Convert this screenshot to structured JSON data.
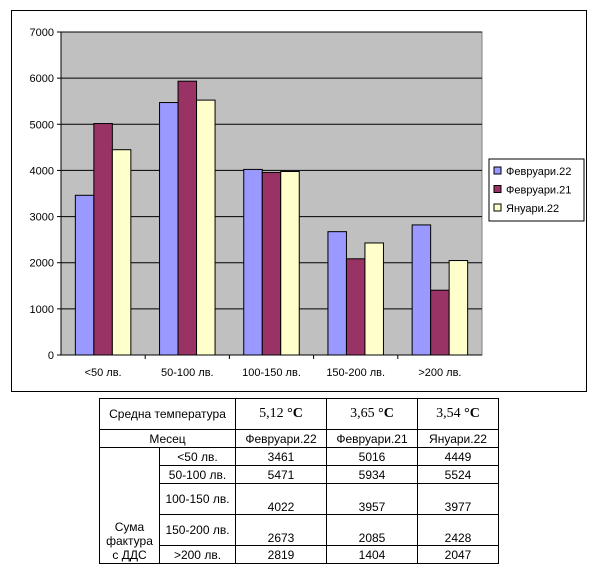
{
  "chart_data": {
    "type": "bar",
    "categories": [
      "<50 лв.",
      "50-100 лв.",
      "100-150 лв.",
      "150-200 лв.",
      ">200 лв."
    ],
    "series": [
      {
        "name": "Февруари.22",
        "color": "#9999ff",
        "values": [
          3461,
          5471,
          4022,
          2673,
          2819
        ]
      },
      {
        "name": "Февруари.21",
        "color": "#993366",
        "values": [
          5016,
          5934,
          3957,
          2085,
          1404
        ]
      },
      {
        "name": "Януари.22",
        "color": "#ffffcc",
        "values": [
          4449,
          5524,
          3977,
          2428,
          2047
        ]
      }
    ],
    "yticks": [
      "0",
      "1000",
      "2000",
      "3000",
      "4000",
      "5000",
      "6000",
      "7000"
    ],
    "ylim": [
      0,
      7000
    ],
    "plot_background": "#c0c0c0",
    "grid": true,
    "legend_position": "right"
  },
  "table": {
    "header_temp_label": "Средна температура",
    "temps": [
      {
        "value": "5,12 ",
        "unit": "°C"
      },
      {
        "value": "3,65 ",
        "unit": "°C"
      },
      {
        "value": "3,54 ",
        "unit": "°C"
      }
    ],
    "month_label": "Месец",
    "months": [
      "Февруари.22",
      "Февруари.21",
      "Януари.22"
    ],
    "group_label": "Сума фактура с ДДС",
    "rows": [
      {
        "label": "<50 лв.",
        "values": [
          "3461",
          "5016",
          "4449"
        ]
      },
      {
        "label": "50-100 лв.",
        "values": [
          "5471",
          "5934",
          "5524"
        ]
      },
      {
        "label": "100-150 лв.",
        "values": [
          "4022",
          "3957",
          "3977"
        ]
      },
      {
        "label": "150-200 лв.",
        "values": [
          "2673",
          "2085",
          "2428"
        ]
      },
      {
        "label": ">200 лв.",
        "values": [
          "2819",
          "1404",
          "2047"
        ]
      }
    ]
  }
}
